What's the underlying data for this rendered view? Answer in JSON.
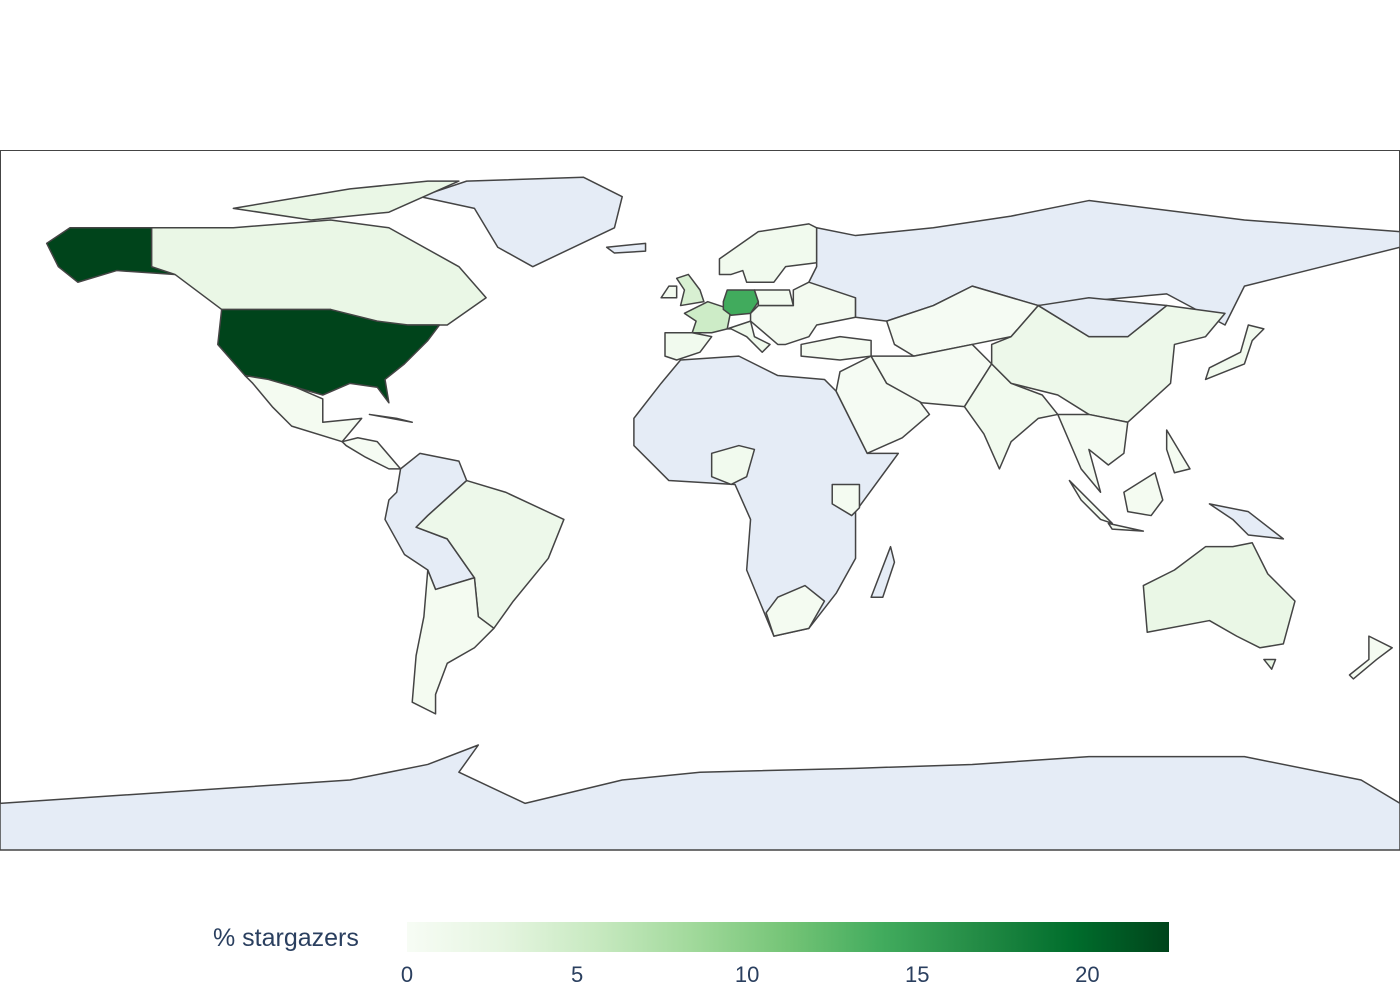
{
  "chart_data": {
    "type": "choropleth",
    "projection": "equirectangular",
    "colorscale": "Greens",
    "colorscale_stops": [
      "#f7fcf5",
      "#e5f5e0",
      "#c7e9c0",
      "#a1d99b",
      "#74c476",
      "#41ab5d",
      "#238b45",
      "#006d2c",
      "#00441b"
    ],
    "no_data_color": "#E5ECF6",
    "border_color": "#444444",
    "colorbar": {
      "title": "% stargazers",
      "range": [
        0,
        22.4
      ],
      "ticks": [
        0,
        5,
        10,
        15,
        20
      ],
      "tick_labels": [
        "0",
        "5",
        "10",
        "15",
        "20"
      ],
      "orientation": "horizontal",
      "placement": "bottom"
    },
    "values": {
      "United States": 22.4,
      "Germany": 14,
      "France": 5,
      "United Kingdom": 4,
      "Canada": 2,
      "Australia": 2,
      "Brazil": 1.5,
      "China": 1.5,
      "India": 1,
      "Spain/Portugal": 1,
      "Italy": 1.2,
      "Poland": 1,
      "Scandinavia": 1,
      "Japan": 1,
      "Nigeria": 1,
      "Eastern Europe": 0.7,
      "Ireland": 0.8,
      "Mexico": 0.5,
      "Argentina/Chile": 0.5,
      "South Africa": 0.5,
      "Kenya": 0.5,
      "Turkey": 0.5,
      "Iran/Pakistan": 0.3,
      "Middle East": 0.3,
      "Kazakhstan": 0.3,
      "Indonesia": 0.5,
      "Philippines": 0.5,
      "Southeast Asia": 0.4,
      "New Zealand": 0.5,
      "Tasmania": 2,
      "Central America": 0.3,
      "Arctic Canada": 2
    }
  }
}
